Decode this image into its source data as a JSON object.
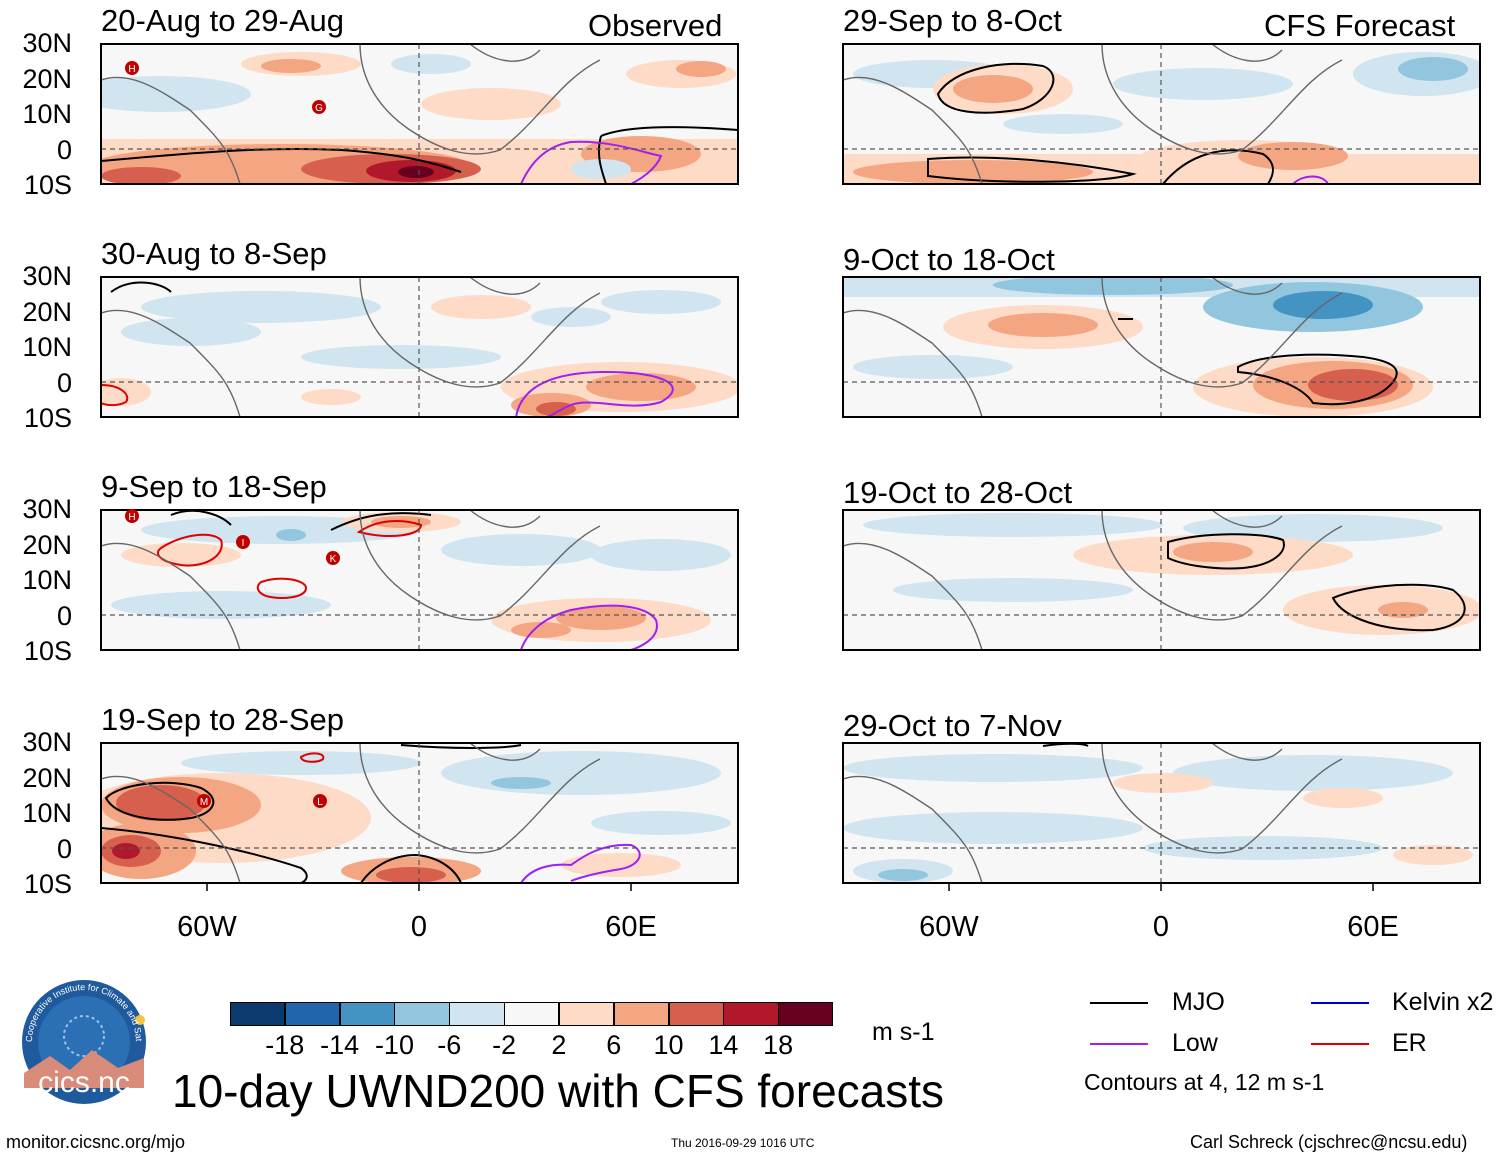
{
  "figure": {
    "title": "10-day UWND200 with CFS forecasts",
    "column_labels": {
      "observed": "Observed",
      "forecast": "CFS Forecast"
    },
    "panels_observed": [
      {
        "period": "20-Aug to 29-Aug"
      },
      {
        "period": "30-Aug to 8-Sep"
      },
      {
        "period": "9-Sep to 18-Sep"
      },
      {
        "period": "19-Sep to 28-Sep"
      }
    ],
    "panels_forecast": [
      {
        "period": "29-Sep to 8-Oct"
      },
      {
        "period": "9-Oct to 18-Oct"
      },
      {
        "period": "19-Oct to 28-Oct"
      },
      {
        "period": "29-Oct to 7-Nov"
      }
    ],
    "lat_labels": [
      "30N",
      "20N",
      "10N",
      "0",
      "10S"
    ],
    "lon_labels": [
      "60W",
      "0",
      "60E"
    ]
  },
  "colorbar": {
    "unit": "m s-1",
    "colors": [
      "#0a3a6e",
      "#2166ac",
      "#4393c3",
      "#92c5de",
      "#d1e5f0",
      "#f7f7f7",
      "#fddbc7",
      "#f4a582",
      "#d6604d",
      "#b2182b",
      "#67001f"
    ],
    "ticks": [
      "-18",
      "-14",
      "-10",
      "-6",
      "-2",
      "2",
      "6",
      "10",
      "14",
      "18"
    ]
  },
  "legend": {
    "items": [
      {
        "label": "MJO",
        "color": "#000000"
      },
      {
        "label": "Low",
        "color": "#a020f0"
      },
      {
        "label": "Kelvin x2",
        "color": "#0000cd"
      },
      {
        "label": "ER",
        "color": "#e00000"
      }
    ],
    "note": "Contours at 4, 12 m s-1"
  },
  "logo": {
    "text": "cics.nc",
    "ring_text": "Cooperative Institute for Climate and Satellites"
  },
  "footer": {
    "website": "monitor.cicsnc.org/mjo",
    "timestamp": "Thu 2016-09-29 1016 UTC",
    "author": "Carl Schreck (cjschrec@ncsu.edu)"
  },
  "storm_markers": [
    {
      "panel": "20-Aug to 29-Aug",
      "letter": "H"
    },
    {
      "panel": "20-Aug to 29-Aug",
      "letter": "G"
    },
    {
      "panel": "9-Sep to 18-Sep",
      "letter": "H"
    },
    {
      "panel": "9-Sep to 18-Sep",
      "letter": "I"
    },
    {
      "panel": "9-Sep to 18-Sep",
      "letter": "K"
    },
    {
      "panel": "19-Sep to 28-Sep",
      "letter": "M"
    },
    {
      "panel": "19-Sep to 28-Sep",
      "letter": "L"
    }
  ]
}
